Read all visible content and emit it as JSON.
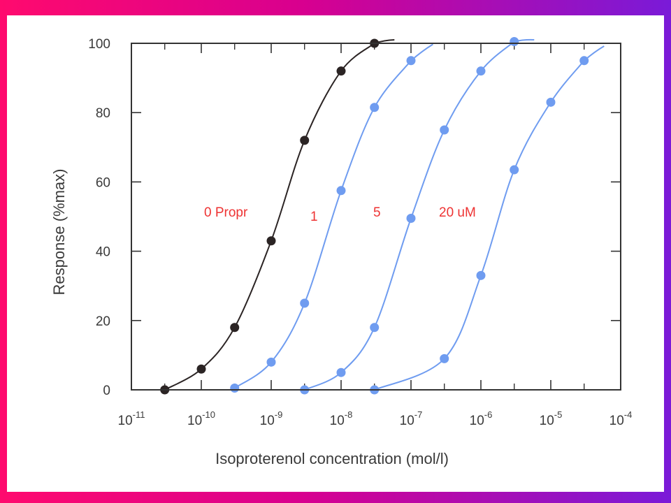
{
  "chart_data": {
    "type": "line",
    "xscale": "log",
    "xlabel": "Isoproterenol concentration (mol/l)",
    "ylabel": "Response (%max)",
    "xlim": [
      "1e-11",
      "1e-4"
    ],
    "ylim": [
      0,
      100
    ],
    "x_ticks": [
      {
        "base": "10",
        "exp": "-11"
      },
      {
        "base": "10",
        "exp": "-10"
      },
      {
        "base": "10",
        "exp": "-9"
      },
      {
        "base": "10",
        "exp": "-8"
      },
      {
        "base": "10",
        "exp": "-7"
      },
      {
        "base": "10",
        "exp": "-6"
      },
      {
        "base": "10",
        "exp": "-5"
      },
      {
        "base": "10",
        "exp": "-4"
      }
    ],
    "y_ticks": [
      "0",
      "20",
      "40",
      "60",
      "80",
      "100"
    ],
    "annotations": [
      "0 Propr",
      "1",
      "5",
      "20 uM"
    ],
    "colors": {
      "control": "#2b2424",
      "antagonist": "#6f9cf0",
      "annotation": "#ee3333",
      "axis": "#333333"
    },
    "series": [
      {
        "color": "#2b2424",
        "points": [
          [
            3e-11,
            0
          ],
          [
            1e-10,
            6
          ],
          [
            3e-10,
            18
          ],
          [
            1e-09,
            43
          ],
          [
            3e-09,
            72
          ],
          [
            1e-08,
            92
          ],
          [
            3e-08,
            100
          ]
        ]
      },
      {
        "color": "#6f9cf0",
        "points": [
          [
            3e-10,
            0.5
          ],
          [
            1e-09,
            8
          ],
          [
            3e-09,
            25
          ],
          [
            1e-08,
            57.5
          ],
          [
            3e-08,
            81.5
          ],
          [
            1e-07,
            95
          ]
        ]
      },
      {
        "color": "#6f9cf0",
        "points": [
          [
            3e-09,
            0
          ],
          [
            1e-08,
            5
          ],
          [
            3e-08,
            18
          ],
          [
            1e-07,
            49.5
          ],
          [
            3e-07,
            75
          ],
          [
            1e-06,
            92
          ],
          [
            3e-06,
            100.5
          ]
        ]
      },
      {
        "color": "#6f9cf0",
        "points": [
          [
            3e-08,
            0
          ],
          [
            3e-07,
            9
          ],
          [
            1e-06,
            33
          ],
          [
            3e-06,
            63.5
          ],
          [
            1e-05,
            83
          ],
          [
            3e-05,
            95
          ]
        ]
      }
    ]
  }
}
